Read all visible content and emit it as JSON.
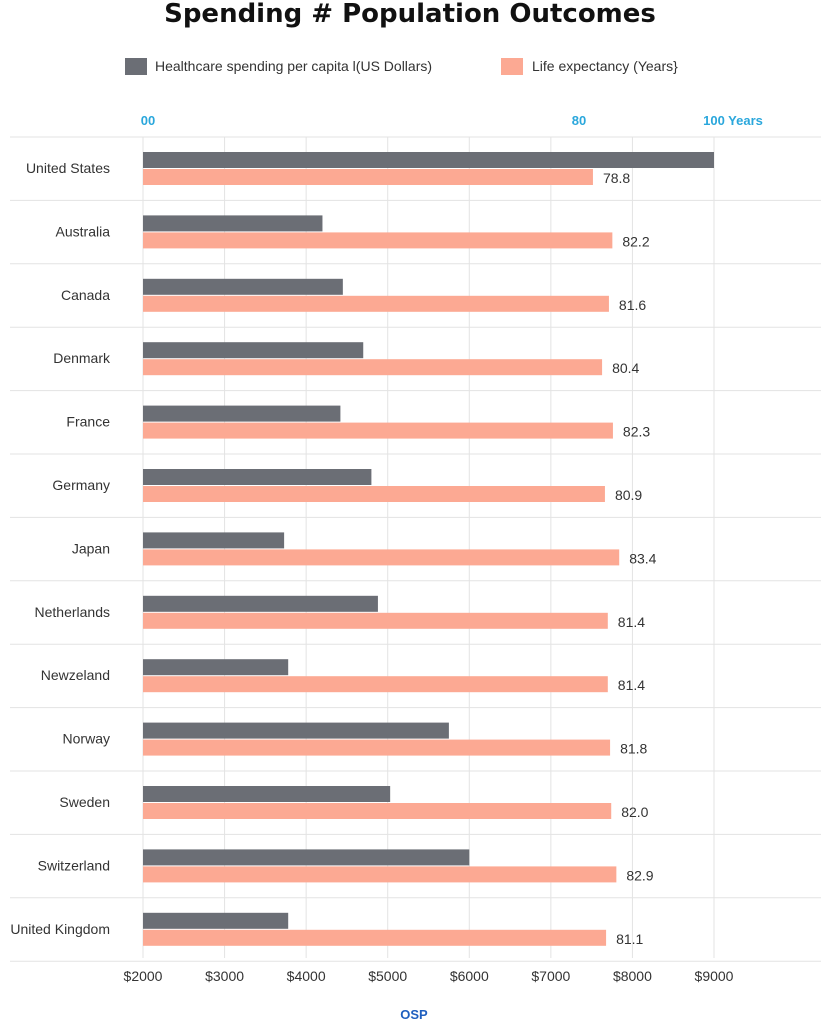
{
  "chart_data": {
    "type": "bar",
    "orientation": "horizontal",
    "title": "Spending # Population Outcomes",
    "source_label": "OSP",
    "categories": [
      "United States",
      "Australia",
      "Canada",
      "Denmark",
      "France",
      "Germany",
      "Japan",
      "Netherlands",
      "Newzeland",
      "Norway",
      "Sweden",
      "Switzerland",
      "United Kingdom"
    ],
    "series": [
      {
        "name": "Healthcare spending per capita l(US Dollars)",
        "color": "#6b6e75",
        "axis": "bottom",
        "values": [
          9000,
          4200,
          4450,
          4700,
          4420,
          4800,
          3730,
          4880,
          3780,
          5750,
          5030,
          6000,
          3780
        ]
      },
      {
        "name": "Life expectancy (Years}",
        "color": "#fca993",
        "axis": "top",
        "values": [
          78.8,
          82.2,
          81.6,
          80.4,
          82.3,
          80.9,
          83.4,
          81.4,
          81.4,
          81.8,
          82.0,
          82.9,
          81.1
        ],
        "labels": [
          "78.8",
          "82.2",
          "81.6",
          "80.4",
          "82.3",
          "80.9",
          "83.4",
          "81.4",
          "81.4",
          "81.8",
          "82.0",
          "82.9",
          "81.1"
        ]
      }
    ],
    "bottom_axis": {
      "min": 2000,
      "max": 9000,
      "ticks": [
        2000,
        3000,
        4000,
        5000,
        6000,
        7000,
        8000,
        9000
      ],
      "tick_labels": [
        "$2000",
        "$3000",
        "$4000",
        "$5000",
        "$6000",
        "$7000",
        "$8000",
        "$9000"
      ]
    },
    "top_axis": {
      "tick_labels": [
        "00",
        "80",
        "100 Years"
      ]
    },
    "grid": true,
    "legend_position": "top-center",
    "colors": {
      "top_axis_label": "#2aa7dc",
      "source_label": "#1f5fbf",
      "grid": "#e3e3e3",
      "text": "#333333"
    }
  }
}
